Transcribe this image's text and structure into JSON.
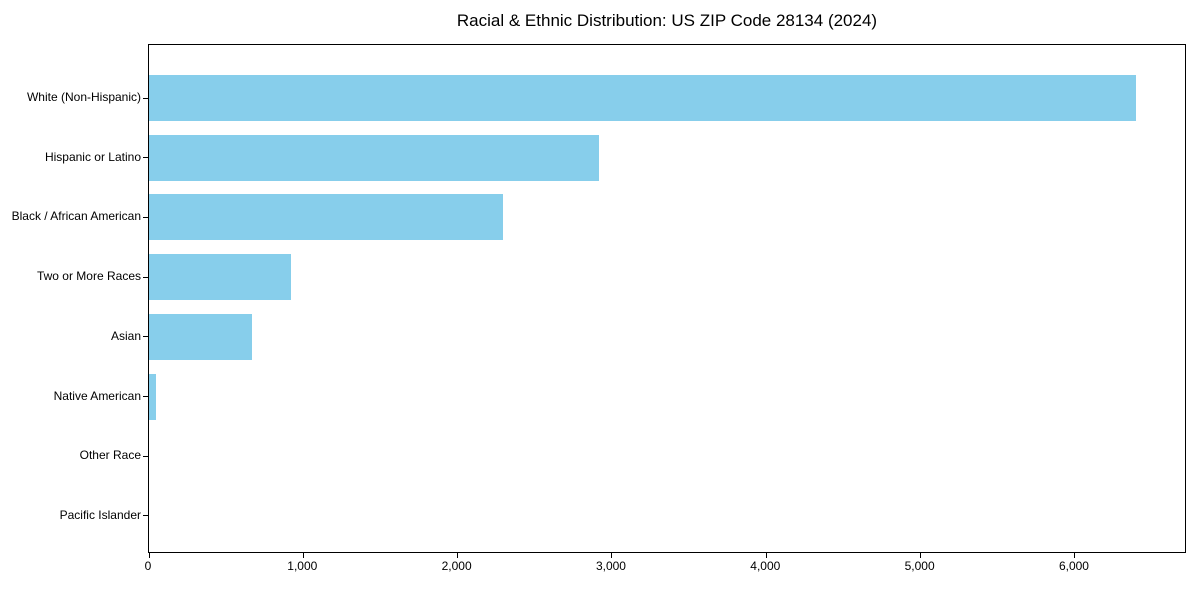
{
  "chart_data": {
    "type": "bar",
    "orientation": "horizontal",
    "title": "Racial & Ethnic Distribution: US ZIP Code 28134 (2024)",
    "categories": [
      "White (Non-Hispanic)",
      "Hispanic or Latino",
      "Black / African American",
      "Two or More Races",
      "Asian",
      "Native American",
      "Other Race",
      "Pacific Islander"
    ],
    "values": [
      6410,
      2920,
      2300,
      920,
      670,
      48,
      0,
      0
    ],
    "xlabel": "",
    "ylabel": "",
    "xlim": [
      0,
      6726
    ],
    "x_ticks": [
      0,
      1000,
      2000,
      3000,
      4000,
      5000,
      6000
    ],
    "x_tick_labels": [
      "0",
      "1,000",
      "2,000",
      "3,000",
      "4,000",
      "5,000",
      "6,000"
    ],
    "bar_color": "#87CEEB",
    "background": "#FFFFFF",
    "grid": false,
    "legend_position": "none"
  }
}
